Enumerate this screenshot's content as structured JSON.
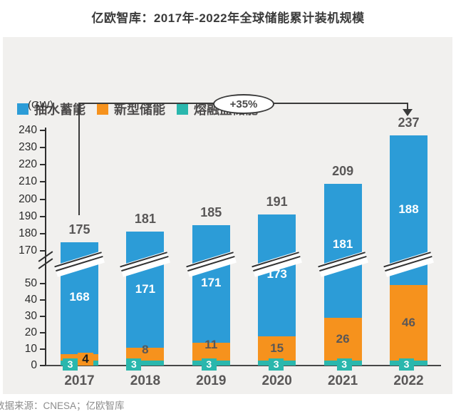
{
  "title": "亿欧智库：2017年-2022年全球储能累计装机规模",
  "unit_label": "(GW)",
  "annotation_label": "+35%",
  "source_line": "数据来源：CNESA；亿欧智库",
  "colors": {
    "pumped_hydro_blue": "#2c9cd7",
    "new_storage_orange": "#f6921d",
    "molten_salt_teal": "#2ab7ad",
    "panel_background": "#f1f0ee",
    "label_gray": "#595757"
  },
  "legend": [
    {
      "label": "抽水蓄能",
      "color": "#2c9cd7"
    },
    {
      "label": "新型储能",
      "color": "#f6921d"
    },
    {
      "label": "熔融盐储能",
      "color": "#2ab7ad"
    }
  ],
  "chart_data": {
    "type": "bar",
    "stacked": true,
    "title": "亿欧智库：2017年-2022年全球储能累计装机规模",
    "ylabel": "(GW)",
    "categories": [
      "2017",
      "2018",
      "2019",
      "2020",
      "2021",
      "2022"
    ],
    "series": [
      {
        "name": "抽水蓄能",
        "color": "#2c9cd7",
        "values": [
          168,
          171,
          171,
          173,
          181,
          188
        ]
      },
      {
        "name": "新型储能",
        "color": "#f6921d",
        "values": [
          4,
          8,
          11,
          15,
          26,
          46
        ]
      },
      {
        "name": "熔融盐储能",
        "color": "#2ab7ad",
        "values": [
          3,
          3,
          3,
          3,
          3,
          3
        ]
      }
    ],
    "totals": [
      175,
      181,
      185,
      191,
      209,
      237
    ],
    "annotation": "+35%",
    "axis_break": {
      "lower_range": [
        0,
        50
      ],
      "upper_range": [
        170,
        240
      ]
    },
    "upper_ticks": [
      240,
      230,
      220,
      210,
      200,
      190,
      180,
      170
    ],
    "lower_ticks": [
      50,
      40,
      30,
      20,
      10,
      0
    ],
    "legend_position": "top-left",
    "grid": false
  }
}
